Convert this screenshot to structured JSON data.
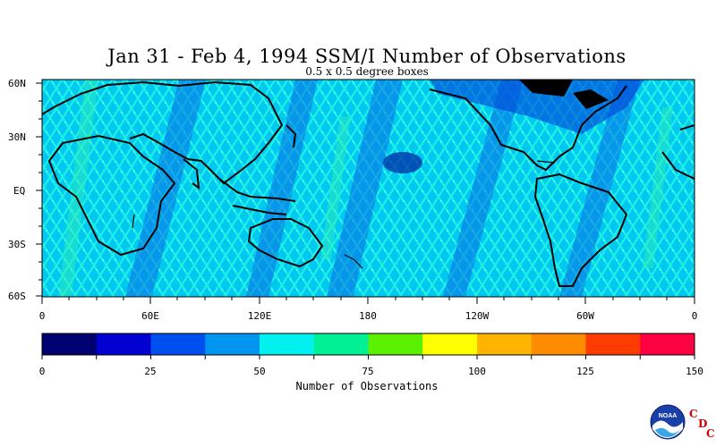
{
  "title": "Jan 31 - Feb 4, 1994 SSM/I Number of Observations",
  "subtitle": "0.5 x 0.5 degree boxes",
  "lat_labels": [
    "60N",
    "30N",
    "EQ",
    "30S",
    "60S"
  ],
  "lon_labels": [
    "0",
    "60E",
    "120E",
    "180",
    "120W",
    "60W",
    "0"
  ],
  "colorbar": {
    "title": "Number of Observations",
    "tick_labels": [
      "0",
      "25",
      "50",
      "75",
      "100",
      "125",
      "150"
    ],
    "colors": [
      "#000070",
      "#0000d0",
      "#0050f0",
      "#0096f0",
      "#00f0f0",
      "#00f096",
      "#5af000",
      "#ffff00",
      "#ffb400",
      "#ff8c00",
      "#ff3c00",
      "#ff0040"
    ]
  },
  "logo": {
    "text": "NOAA",
    "letters": [
      "C",
      "D",
      "C"
    ]
  }
}
